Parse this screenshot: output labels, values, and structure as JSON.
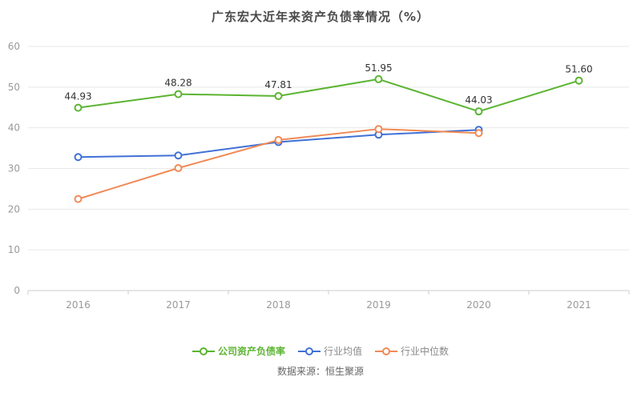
{
  "title": "广东宏大近年来资产负债率情况（%）",
  "source": "数据来源：恒生聚源",
  "chart_data": {
    "type": "line",
    "title": "广东宏大近年来资产负债率情况（%）",
    "x": [
      "2016",
      "2017",
      "2018",
      "2019",
      "2020",
      "2021"
    ],
    "xlabel": "",
    "ylabel": "",
    "ylim": [
      0,
      60
    ],
    "yticks": [
      0,
      10,
      20,
      30,
      40,
      50,
      60
    ],
    "grid": true,
    "legend_position": "bottom",
    "series": [
      {
        "name": "公司资产负债率",
        "color": "#5bb431",
        "text_color": "#5bb431",
        "bold": true,
        "values": [
          44.93,
          48.28,
          47.81,
          51.95,
          44.03,
          51.6
        ],
        "labels": [
          "44.93",
          "48.28",
          "47.81",
          "51.95",
          "44.03",
          "51.60"
        ]
      },
      {
        "name": "行业均值",
        "color": "#4071d6",
        "text_color": "#888888",
        "bold": false,
        "values": [
          32.8,
          33.2,
          36.5,
          38.3,
          39.5,
          null
        ],
        "labels": null
      },
      {
        "name": "行业中位数",
        "color": "#f08a56",
        "text_color": "#888888",
        "bold": false,
        "values": [
          22.5,
          30.1,
          37.0,
          39.7,
          38.7,
          null
        ],
        "labels": null
      }
    ],
    "colors": {
      "grid_line": "#e8e8e8",
      "axis_line": "#cccccc",
      "tick_label": "#999999",
      "data_label": "#333333"
    }
  }
}
